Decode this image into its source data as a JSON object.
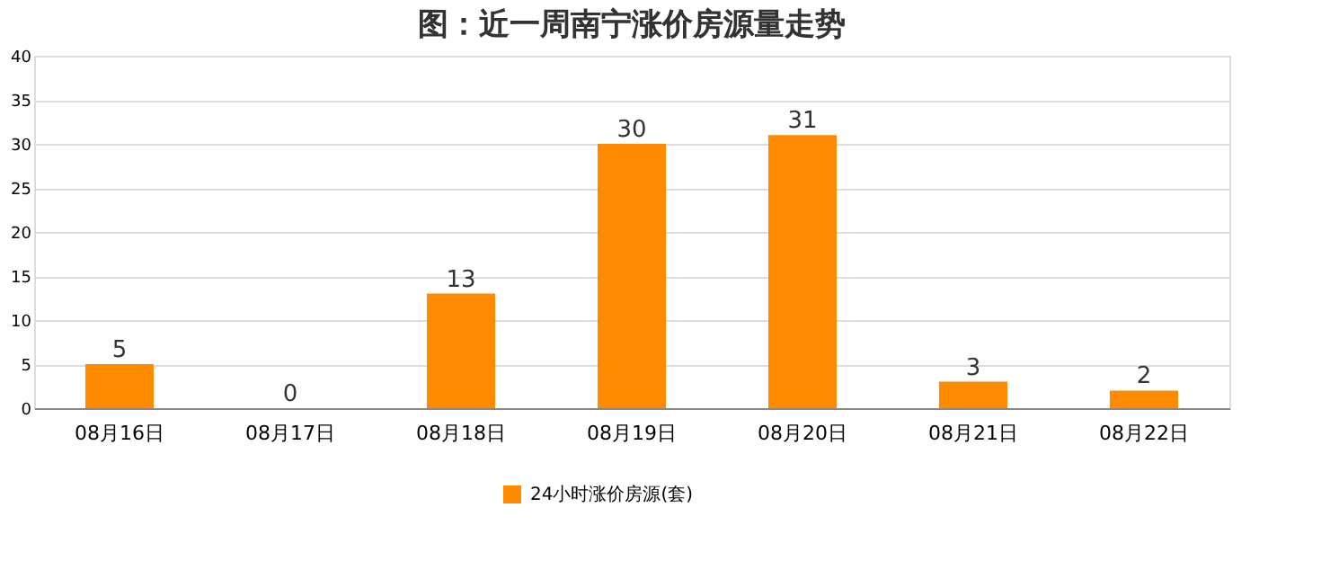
{
  "chart_data": {
    "type": "bar",
    "title": "图：近一周南宁涨价房源量走势",
    "categories": [
      "08月16日",
      "08月17日",
      "08月18日",
      "08月19日",
      "08月20日",
      "08月21日",
      "08月22日"
    ],
    "series": [
      {
        "name": "24小时涨价房源(套)",
        "color": "#ff8a00",
        "values": [
          5,
          0,
          13,
          30,
          31,
          3,
          2
        ]
      }
    ],
    "ylim": [
      0,
      40
    ],
    "yticks": [
      0,
      5,
      10,
      15,
      20,
      25,
      30,
      35,
      40
    ],
    "grid": "y",
    "legend": "bottom",
    "data_labels": true
  }
}
